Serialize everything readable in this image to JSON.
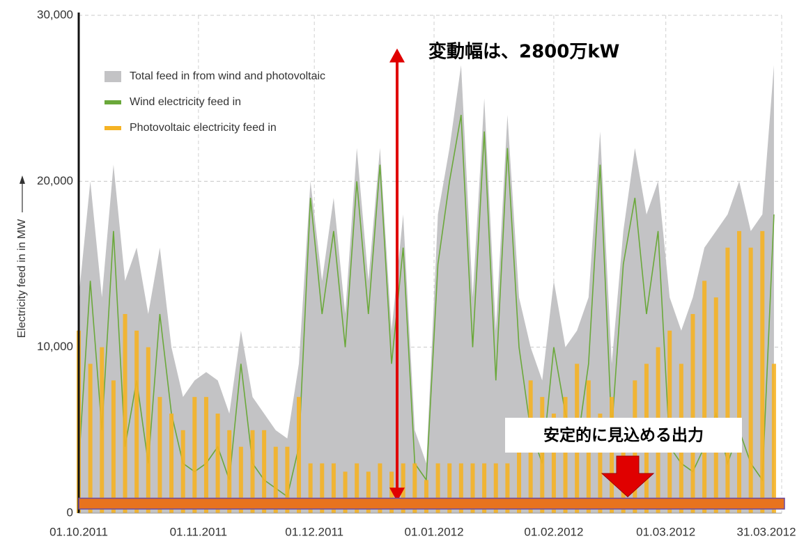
{
  "chart_data": {
    "type": "combo",
    "ylabel": "Electricity feed in in MW",
    "x": [
      "01.10.2011",
      "04.10.2011",
      "07.10.2011",
      "10.10.2011",
      "13.10.2011",
      "16.10.2011",
      "19.10.2011",
      "22.10.2011",
      "25.10.2011",
      "28.10.2011",
      "31.10.2011",
      "03.11.2011",
      "06.11.2011",
      "09.11.2011",
      "12.11.2011",
      "15.11.2011",
      "18.11.2011",
      "21.11.2011",
      "24.11.2011",
      "27.11.2011",
      "30.11.2011",
      "03.12.2011",
      "06.12.2011",
      "09.12.2011",
      "12.12.2011",
      "15.12.2011",
      "18.12.2011",
      "21.12.2011",
      "24.12.2011",
      "27.12.2011",
      "30.12.2011",
      "02.01.2012",
      "05.01.2012",
      "08.01.2012",
      "11.01.2012",
      "14.01.2012",
      "17.01.2012",
      "20.01.2012",
      "23.01.2012",
      "26.01.2012",
      "29.01.2012",
      "01.02.2012",
      "04.02.2012",
      "07.02.2012",
      "10.02.2012",
      "13.02.2012",
      "16.02.2012",
      "19.02.2012",
      "22.02.2012",
      "25.02.2012",
      "28.02.2012",
      "02.03.2012",
      "05.03.2012",
      "08.03.2012",
      "11.03.2012",
      "14.03.2012",
      "17.03.2012",
      "20.03.2012",
      "23.03.2012",
      "26.03.2012",
      "29.03.2012"
    ],
    "series": [
      {
        "name": "Total feed in from wind and photovoltaic",
        "type": "area",
        "color": "#c3c3c5",
        "values": [
          13000,
          20000,
          13000,
          21000,
          14000,
          16000,
          12000,
          16000,
          10000,
          7000,
          8000,
          8500,
          8000,
          6000,
          11000,
          7000,
          6000,
          5000,
          4500,
          9000,
          20000,
          14000,
          19000,
          12000,
          22000,
          14000,
          22000,
          11000,
          18000,
          5000,
          3000,
          18000,
          22000,
          27000,
          13000,
          25000,
          11000,
          24000,
          13000,
          10000,
          8000,
          14000,
          10000,
          11000,
          13000,
          23000,
          9000,
          17000,
          22000,
          18000,
          20000,
          13000,
          11000,
          13000,
          16000,
          17000,
          18000,
          20000,
          17000,
          18000,
          27000
        ]
      },
      {
        "name": "Wind electricity feed in",
        "type": "line",
        "color": "#6aa83a",
        "values": [
          3000,
          14000,
          5000,
          17000,
          4000,
          8000,
          3000,
          12000,
          6000,
          3000,
          2500,
          3000,
          4000,
          2000,
          9000,
          3000,
          2000,
          1500,
          1000,
          4000,
          19000,
          12000,
          17000,
          10000,
          20000,
          12000,
          21000,
          9000,
          16000,
          3000,
          2000,
          15000,
          20000,
          24000,
          10000,
          23000,
          8000,
          22000,
          10000,
          5000,
          3000,
          10000,
          6000,
          4000,
          9000,
          21000,
          5000,
          15000,
          19000,
          12000,
          17000,
          4000,
          3000,
          2500,
          4000,
          6000,
          3000,
          5000,
          3000,
          2000,
          18000
        ]
      },
      {
        "name": "Photovoltaic electricity feed in",
        "type": "bar",
        "color": "#f5b324",
        "values": [
          11000,
          9000,
          10000,
          8000,
          12000,
          11000,
          10000,
          7000,
          6000,
          5000,
          7000,
          7000,
          6000,
          5000,
          4000,
          5000,
          5000,
          4000,
          4000,
          7000,
          3000,
          3000,
          3000,
          2500,
          3000,
          2500,
          3000,
          2500,
          3000,
          3000,
          2000,
          3000,
          3000,
          3000,
          3000,
          3000,
          3000,
          3000,
          4000,
          8000,
          7000,
          6000,
          7000,
          9000,
          8000,
          6000,
          7000,
          5000,
          8000,
          9000,
          10000,
          11000,
          9000,
          12000,
          14000,
          13000,
          16000,
          17000,
          16000,
          17000,
          9000
        ]
      }
    ],
    "xlim": [
      "01.10.2011",
      "31.03.2012"
    ],
    "xticks": [
      "01.10.2011",
      "01.11.2011",
      "01.12.2011",
      "01.01.2012",
      "01.02.2012",
      "01.03.2012",
      "31.03.2012"
    ],
    "ylim": [
      0,
      30000
    ],
    "yticks": [
      0,
      {
        "value": 10000,
        "label": "10,000"
      },
      {
        "value": 20000,
        "label": "20,000"
      },
      {
        "value": 30000,
        "label": "30,000"
      }
    ],
    "grid": true,
    "legend": "upper left",
    "annotations": [
      {
        "text": "変動幅は、2800万kW",
        "range": [
          700,
          28000
        ],
        "color": "#e00000"
      },
      {
        "text": "安定的に見込める出力",
        "range": [
          250,
          900
        ],
        "color": "#e8731e"
      }
    ]
  }
}
